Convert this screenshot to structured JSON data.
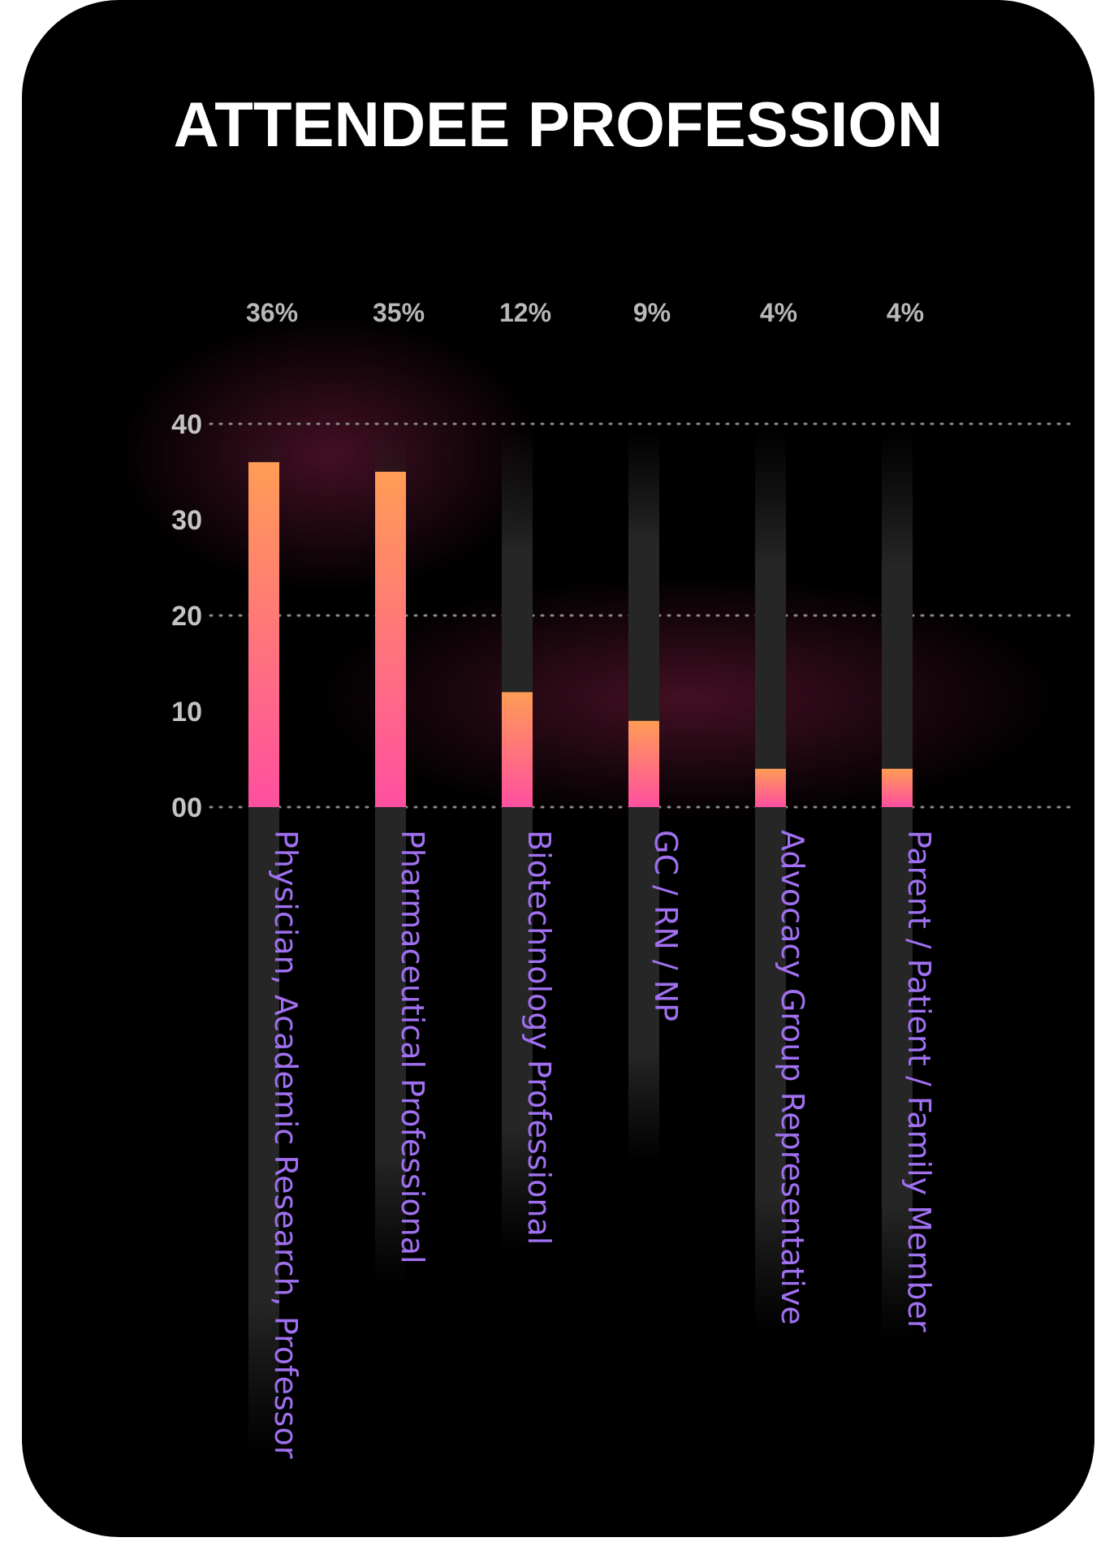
{
  "title": "ATTENDEE PROFESSION",
  "colors": {
    "background": "#000000",
    "bar_top": "#ff9c55",
    "bar_bottom": "#ff4fa0",
    "track": "#2a2a2a",
    "label": "#a070f0",
    "tick": "#c4c4c4",
    "percent": "#b8b8b8"
  },
  "chart_data": {
    "type": "bar",
    "title": "ATTENDEE PROFESSION",
    "categories": [
      "Physician, Academic Research, Professor",
      "Pharmaceutical Professional",
      "Biotechnology Professional",
      "GC / RN / NP",
      "Advocacy Group Representative",
      "Parent / Patient / Family Member"
    ],
    "values": [
      36,
      35,
      12,
      9,
      4,
      4
    ],
    "data_labels": [
      "36%",
      "35%",
      "12%",
      "9%",
      "4%",
      "4%"
    ],
    "y_ticks": [
      "00",
      "10",
      "20",
      "30",
      "40"
    ],
    "y_tick_values": [
      0,
      10,
      20,
      30,
      40
    ],
    "ylim": [
      0,
      40
    ],
    "grid": true,
    "xlabel": "",
    "ylabel": ""
  }
}
